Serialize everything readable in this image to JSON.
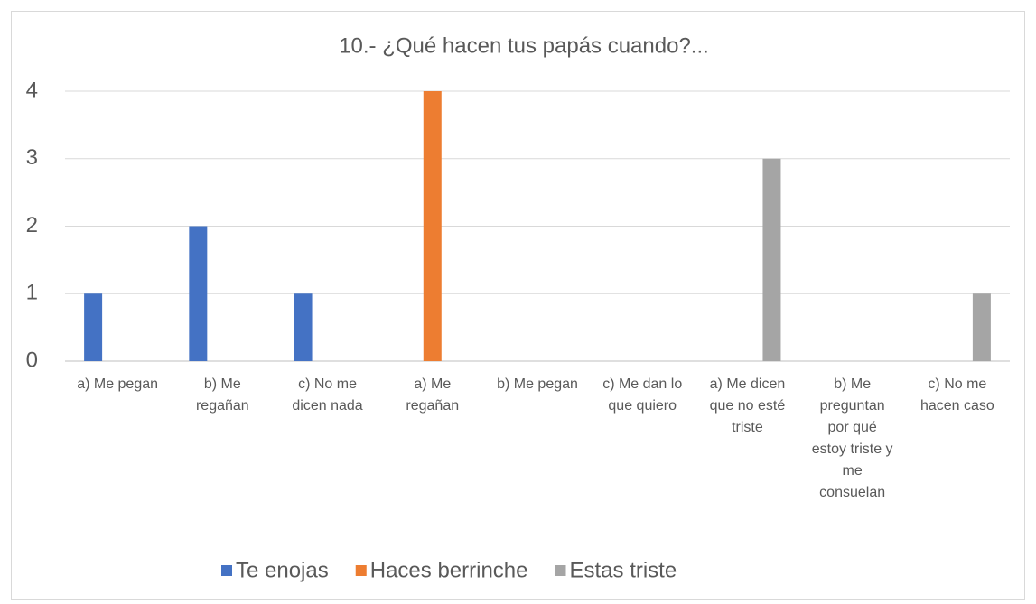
{
  "chart_data": {
    "type": "bar",
    "title": "10.- ¿Qué hacen tus papás cuando?...",
    "categories": [
      "a) Me pegan",
      "b) Me regañan",
      "c) No me dicen nada",
      "a) Me regañan",
      "b) Me pegan",
      "c) Me dan lo que quiero",
      "a) Me dicen que no esté triste",
      "b) Me preguntan por qué estoy triste y me consuelan",
      "c) No me hacen caso"
    ],
    "series": [
      {
        "name": "Te enojas",
        "color": "#4472c4",
        "values": [
          1,
          2,
          1,
          null,
          null,
          null,
          null,
          null,
          null
        ]
      },
      {
        "name": "Haces berrinche",
        "color": "#ed7d31",
        "values": [
          null,
          null,
          null,
          4,
          0,
          0,
          null,
          null,
          null
        ]
      },
      {
        "name": "Estas triste",
        "color": "#a5a5a5",
        "values": [
          null,
          null,
          null,
          null,
          null,
          null,
          3,
          0,
          1
        ]
      }
    ],
    "ylim": [
      0,
      4
    ],
    "yticks": [
      0,
      1,
      2,
      3,
      4
    ],
    "grid": true,
    "legend": "bottom"
  }
}
